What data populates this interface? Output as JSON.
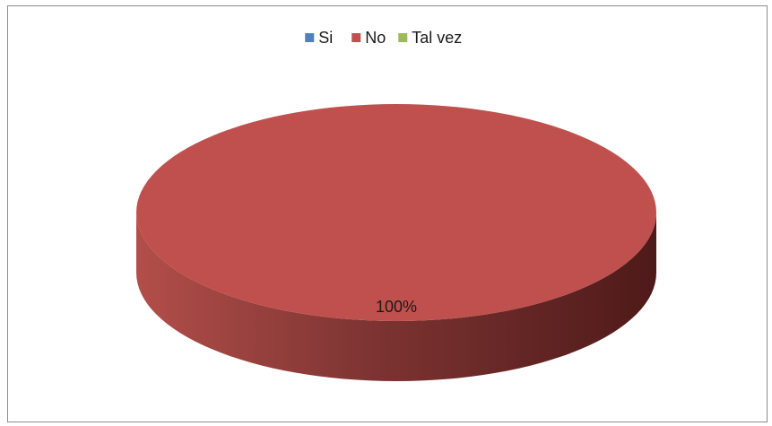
{
  "chart_data": {
    "type": "pie",
    "categories": [
      "Si",
      "No",
      "Tal vez"
    ],
    "values": [
      0,
      100,
      0
    ],
    "data_labels": [
      "",
      "100%",
      ""
    ],
    "colors": [
      "#4f81bd",
      "#c0504d",
      "#9bbb59"
    ],
    "legend_position": "top",
    "style": "3d"
  }
}
